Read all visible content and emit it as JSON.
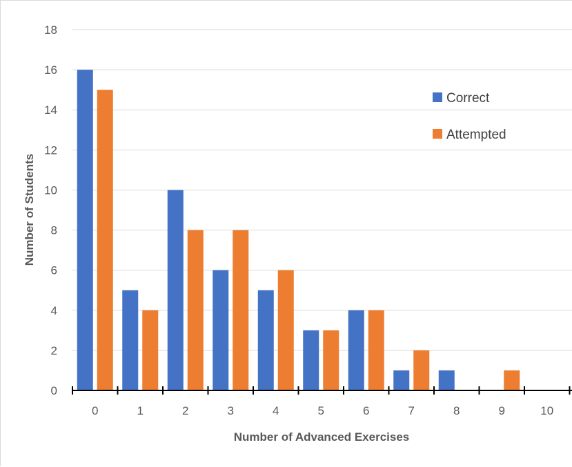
{
  "chart_data": {
    "type": "bar",
    "categories": [
      "0",
      "1",
      "2",
      "3",
      "4",
      "5",
      "6",
      "7",
      "8",
      "9",
      "10"
    ],
    "series": [
      {
        "name": "Correct",
        "color": "#4472C4",
        "values": [
          16,
          5,
          10,
          6,
          5,
          3,
          4,
          1,
          1,
          0,
          0
        ]
      },
      {
        "name": "Attempted",
        "color": "#ED7D31",
        "values": [
          15,
          4,
          8,
          8,
          6,
          3,
          4,
          2,
          0,
          1,
          0
        ]
      }
    ],
    "xlabel": "Number of Advanced Exercises",
    "ylabel": "Number of Students",
    "ylim": [
      0,
      18
    ],
    "yticks": [
      0,
      2,
      4,
      6,
      8,
      10,
      12,
      14,
      16,
      18
    ],
    "grid": true,
    "legend": "top-right"
  }
}
